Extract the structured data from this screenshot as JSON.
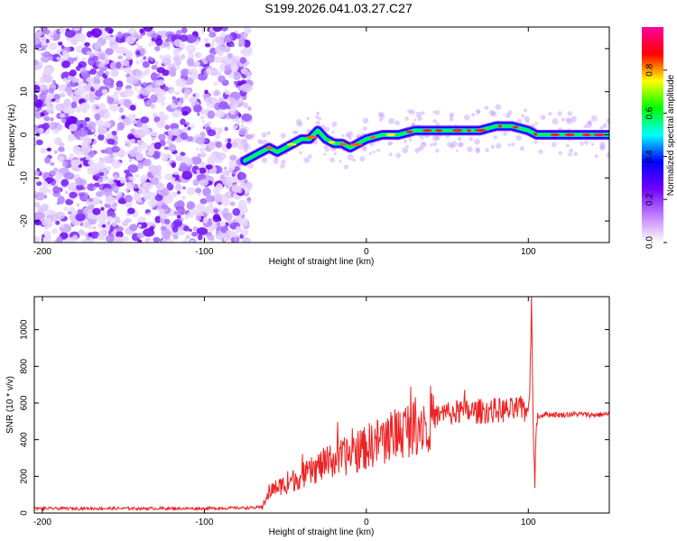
{
  "figure": {
    "title": "S199.2026.041.03.27.C27"
  },
  "chart_data": [
    {
      "type": "heatmap",
      "panel": "top",
      "xlabel": "Height of straight line (km)",
      "ylabel": "Frequency (Hz)",
      "xlim": [
        -205,
        150
      ],
      "ylim": [
        -25,
        25
      ],
      "xticks": [
        -200,
        -100,
        0,
        100
      ],
      "yticks": [
        -20,
        -10,
        0,
        10,
        20
      ],
      "noise_region": {
        "x_range": [
          -205,
          -72
        ],
        "y_range": [
          -25,
          25
        ],
        "color": "violet speckle"
      },
      "ridge": {
        "x": [
          -75,
          -70,
          -65,
          -60,
          -55,
          -50,
          -45,
          -40,
          -35,
          -30,
          -25,
          -20,
          -15,
          -10,
          -5,
          0,
          10,
          20,
          30,
          40,
          50,
          60,
          70,
          80,
          90,
          100,
          105,
          120,
          150
        ],
        "freq": [
          -6,
          -5,
          -4,
          -3,
          -4,
          -3,
          -2,
          -1,
          -1,
          1,
          -1,
          -2,
          -2,
          -3,
          -2,
          -1,
          0,
          0,
          1,
          1,
          1,
          1,
          1,
          2,
          2,
          1,
          0,
          0,
          0
        ]
      },
      "colorbar": {
        "label": "Normalized spectral amplitude",
        "range": [
          0,
          1
        ],
        "ticks": [
          "0.0",
          "0.2",
          "0.4",
          "0.6",
          "0.8"
        ],
        "tick_values": [
          0.0,
          0.2,
          0.4,
          0.6,
          0.8
        ],
        "colors": [
          "#ffffff",
          "#c080ff",
          "#7000ff",
          "#0000ff",
          "#00ffff",
          "#00ff00",
          "#ffff00",
          "#ff0000",
          "#ff00a0"
        ]
      }
    },
    {
      "type": "line",
      "panel": "bottom",
      "xlabel": "Height of straight line (km)",
      "ylabel": "SNR (10 * v/v)",
      "xlim": [
        -205,
        150
      ],
      "ylim": [
        0,
        1180
      ],
      "xticks": [
        -200,
        -100,
        0,
        100
      ],
      "yticks": [
        0,
        200,
        400,
        600,
        800,
        1000
      ],
      "series": [
        {
          "name": "SNR",
          "color": "#ee2222",
          "x": [
            -205,
            -100,
            -65,
            -62,
            -60,
            -55,
            -50,
            -45,
            -40,
            -35,
            -30,
            -25,
            -20,
            -15,
            -10,
            -5,
            0,
            10,
            20,
            30,
            40,
            50,
            60,
            70,
            80,
            90,
            95,
            98,
            100,
            101,
            102,
            103,
            104,
            105,
            110,
            120,
            130,
            140,
            150
          ],
          "y": [
            25,
            25,
            30,
            60,
            120,
            140,
            160,
            180,
            200,
            220,
            250,
            270,
            290,
            300,
            320,
            340,
            360,
            400,
            440,
            480,
            520,
            545,
            550,
            555,
            560,
            560,
            570,
            560,
            550,
            700,
            1180,
            500,
            120,
            520,
            540,
            535,
            540,
            535,
            540
          ]
        }
      ]
    }
  ]
}
